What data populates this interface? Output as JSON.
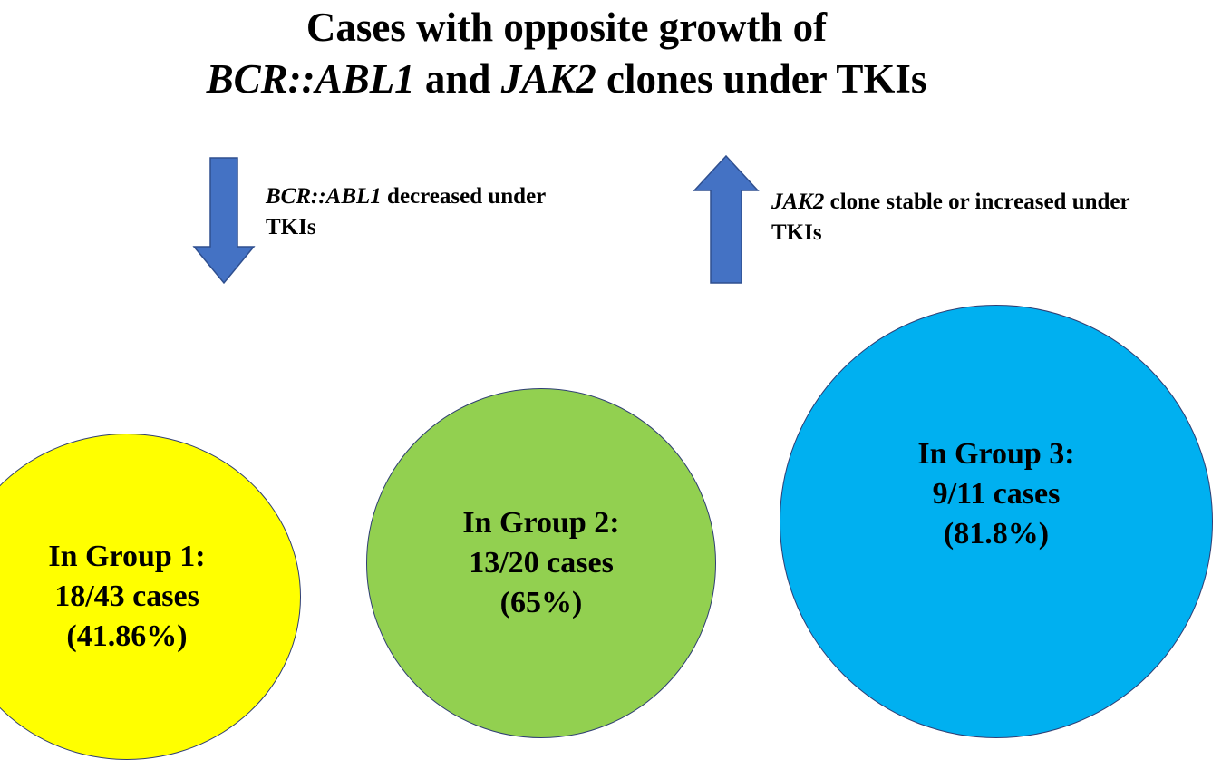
{
  "title": {
    "line1": "Cases with opposite growth of",
    "gene1": "BCR::ABL1",
    "and": " and ",
    "gene2": "JAK2",
    "rest": " clones under TKIs"
  },
  "down_note": {
    "gene": "BCR::ABL1",
    "text1": " decreased under",
    "text2": "TKIs"
  },
  "up_note": {
    "gene": "JAK2",
    "text1": " clone stable or increased under",
    "text2": "TKIs"
  },
  "colors": {
    "arrow": "#4472c4",
    "group1": "#ffff00",
    "group2": "#92d050",
    "group3": "#00b0f0"
  },
  "groups": [
    {
      "label": "In Group 1:",
      "cases": "18/43 cases",
      "percent": "(41.86%)"
    },
    {
      "label": "In Group 2:",
      "cases": "13/20 cases",
      "percent": "(65%)"
    },
    {
      "label": "In Group 3:",
      "cases": "9/11 cases",
      "percent": "(81.8%)"
    }
  ]
}
